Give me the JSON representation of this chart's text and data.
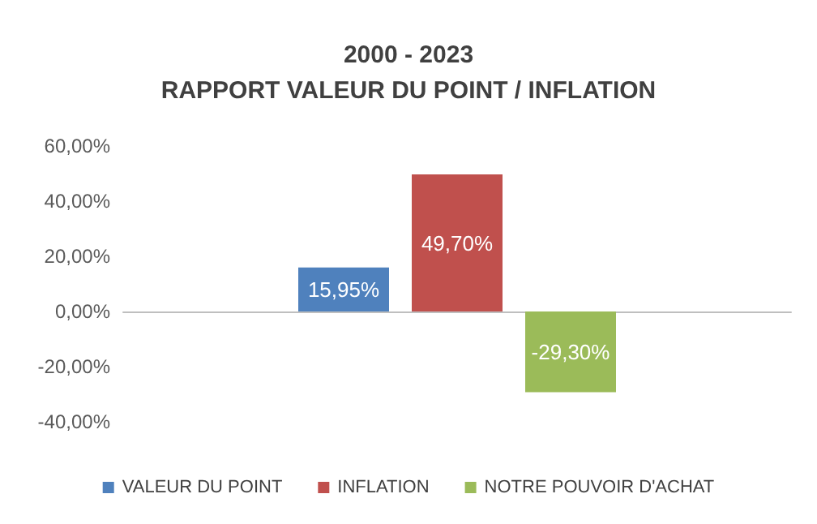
{
  "chart_data": {
    "type": "bar",
    "title": "2000 - 2023\nRAPPORT VALEUR DU POINT / INFLATION",
    "categories": [
      null
    ],
    "series": [
      {
        "name": "VALEUR DU POINT",
        "color": "#4f81bd",
        "values": [
          15.95
        ],
        "value_labels": [
          "15,95%"
        ]
      },
      {
        "name": "INFLATION",
        "color": "#c0504d",
        "values": [
          49.7
        ],
        "value_labels": [
          "49,70%"
        ]
      },
      {
        "name": "NOTRE POUVOIR D'ACHAT",
        "color": "#9bbb59",
        "values": [
          -29.3
        ],
        "value_labels": [
          "-29,30%"
        ]
      }
    ],
    "ylim": [
      -40,
      60
    ],
    "yticks": [
      {
        "value": -40,
        "label": "-40,00%"
      },
      {
        "value": -20,
        "label": "-20,00%"
      },
      {
        "value": 0,
        "label": "0,00%"
      },
      {
        "value": 20,
        "label": "20,00%"
      },
      {
        "value": 40,
        "label": "40,00%"
      },
      {
        "value": 60,
        "label": "60,00%"
      }
    ],
    "legend": "bottom"
  }
}
